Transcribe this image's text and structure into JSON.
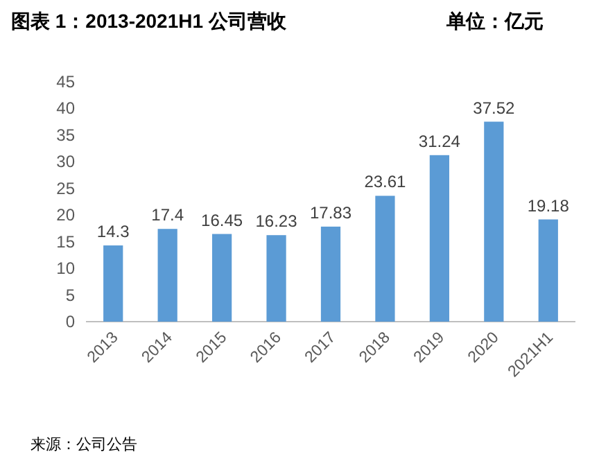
{
  "chart_data": {
    "type": "bar",
    "title": "图表 1：2013-2021H1 公司营收",
    "subtitle": "单位：亿元",
    "categories": [
      "2013",
      "2014",
      "2015",
      "2016",
      "2017",
      "2018",
      "2019",
      "2020",
      "2021H1"
    ],
    "values": [
      14.3,
      17.4,
      16.45,
      16.23,
      17.83,
      23.61,
      31.24,
      37.52,
      19.18
    ],
    "color": "#5b9bd5",
    "ylim": [
      0,
      45
    ],
    "yticks": [
      0,
      5,
      10,
      15,
      20,
      25,
      30,
      35,
      40,
      45
    ],
    "grid": false,
    "data_labels": true,
    "annotations": [
      "来源：公司公告"
    ]
  }
}
